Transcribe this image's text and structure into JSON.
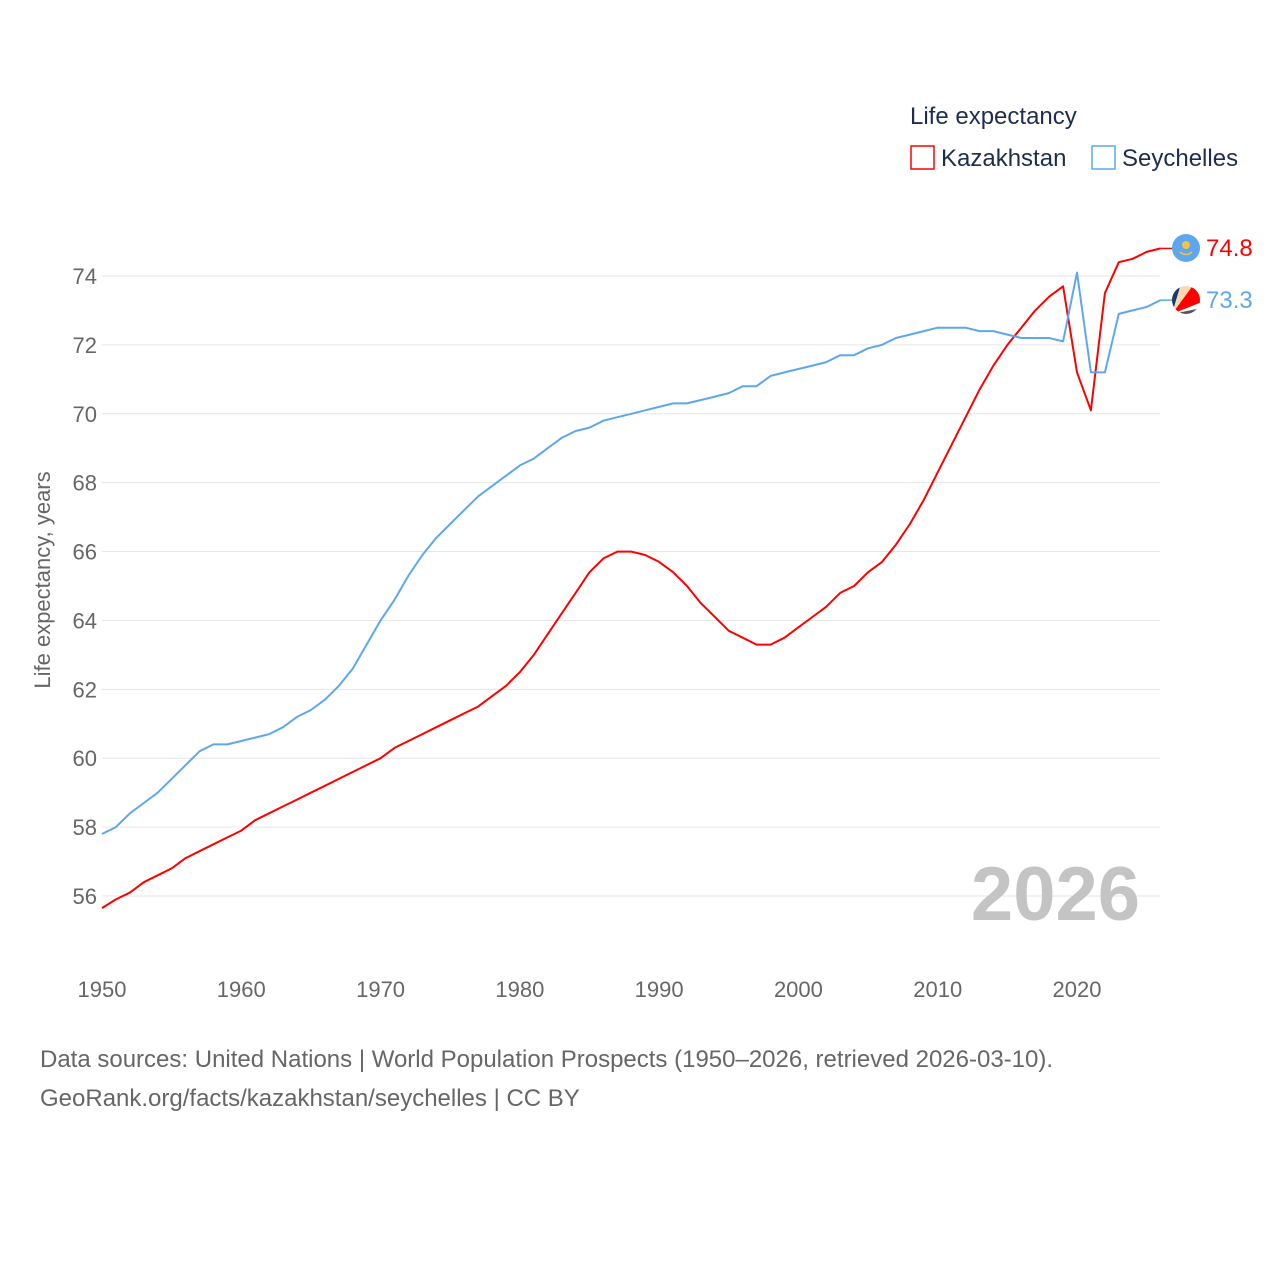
{
  "chart_data": {
    "type": "line",
    "ylabel": "Life expectancy, years",
    "xlabel": "",
    "legend_title": "Life expectancy",
    "legend_position": "top-right",
    "watermark_year": "2026",
    "xlim": [
      1950,
      2026
    ],
    "ylim": [
      55,
      75
    ],
    "xticks": [
      1950,
      1960,
      1970,
      1980,
      1990,
      2000,
      2010,
      2020
    ],
    "yticks": [
      56,
      58,
      60,
      62,
      64,
      66,
      68,
      70,
      72,
      74
    ],
    "grid": true,
    "x": [
      1950,
      1951,
      1952,
      1953,
      1954,
      1955,
      1956,
      1957,
      1958,
      1959,
      1960,
      1961,
      1962,
      1963,
      1964,
      1965,
      1966,
      1967,
      1968,
      1969,
      1970,
      1971,
      1972,
      1973,
      1974,
      1975,
      1976,
      1977,
      1978,
      1979,
      1980,
      1981,
      1982,
      1983,
      1984,
      1985,
      1986,
      1987,
      1988,
      1989,
      1990,
      1991,
      1992,
      1993,
      1994,
      1995,
      1996,
      1997,
      1998,
      1999,
      2000,
      2001,
      2002,
      2003,
      2004,
      2005,
      2006,
      2007,
      2008,
      2009,
      2010,
      2011,
      2012,
      2013,
      2014,
      2015,
      2016,
      2017,
      2018,
      2019,
      2020,
      2021,
      2022,
      2023,
      2024,
      2025,
      2026
    ],
    "series": [
      {
        "name": "Kazakhstan",
        "color": "#ff0000",
        "end_label": "74.8",
        "flag": "kazakhstan-flag",
        "values": [
          55.65,
          55.9,
          56.1,
          56.4,
          56.6,
          56.8,
          57.1,
          57.3,
          57.5,
          57.7,
          57.9,
          58.2,
          58.4,
          58.6,
          58.8,
          59.0,
          59.2,
          59.4,
          59.6,
          59.8,
          60.0,
          60.3,
          60.5,
          60.7,
          60.9,
          61.1,
          61.3,
          61.5,
          61.8,
          62.1,
          62.5,
          63.0,
          63.6,
          64.2,
          64.8,
          65.4,
          65.8,
          66.0,
          66.0,
          65.9,
          65.7,
          65.4,
          65.0,
          64.5,
          64.1,
          63.7,
          63.5,
          63.3,
          63.3,
          63.5,
          63.8,
          64.1,
          64.4,
          64.8,
          65.0,
          65.4,
          65.7,
          66.2,
          66.8,
          67.5,
          68.3,
          69.1,
          69.9,
          70.7,
          71.4,
          72.0,
          72.5,
          73.0,
          73.4,
          73.7,
          71.2,
          70.1,
          73.5,
          74.4,
          74.5,
          74.7,
          74.8
        ]
      },
      {
        "name": "Seychelles",
        "color": "#5ea7ef",
        "end_label": "73.3",
        "flag": "seychelles-flag",
        "values": [
          57.8,
          58.0,
          58.4,
          58.7,
          59.0,
          59.4,
          59.8,
          60.2,
          60.4,
          60.4,
          60.5,
          60.6,
          60.7,
          60.9,
          61.2,
          61.4,
          61.7,
          62.1,
          62.6,
          63.3,
          64.0,
          64.6,
          65.3,
          65.9,
          66.4,
          66.8,
          67.2,
          67.6,
          67.9,
          68.2,
          68.5,
          68.7,
          69.0,
          69.3,
          69.5,
          69.6,
          69.8,
          69.9,
          70.0,
          70.1,
          70.2,
          70.3,
          70.3,
          70.4,
          70.5,
          70.6,
          70.8,
          70.8,
          71.1,
          71.2,
          71.3,
          71.4,
          71.5,
          71.7,
          71.7,
          71.9,
          72.0,
          72.2,
          72.3,
          72.4,
          72.5,
          72.5,
          72.5,
          72.4,
          72.4,
          72.3,
          72.2,
          72.2,
          72.2,
          72.1,
          74.1,
          71.2,
          71.2,
          72.9,
          73.0,
          73.1,
          73.3
        ]
      }
    ]
  },
  "footer": {
    "line1": "Data sources: United Nations | World Population Prospects (1950–2026, retrieved 2026-03-10).",
    "line2": "GeoRank.org/facts/kazakhstan/seychelles | CC BY"
  }
}
